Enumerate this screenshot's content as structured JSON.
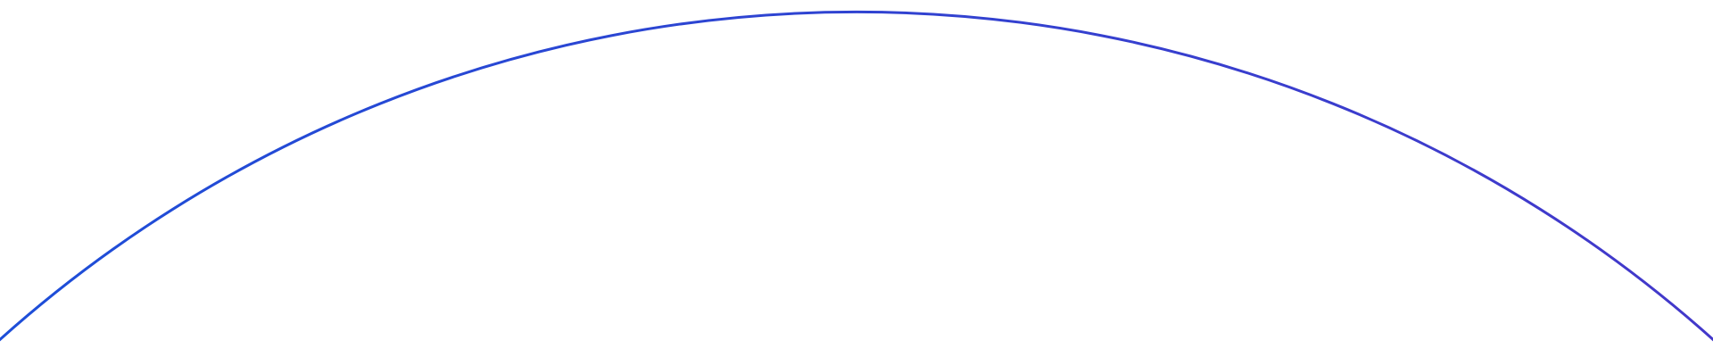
{
  "decoration": {
    "shape": "arc",
    "gradient_start": "#1d4ed8",
    "gradient_end": "#4338ca",
    "background": "#ffffff"
  }
}
